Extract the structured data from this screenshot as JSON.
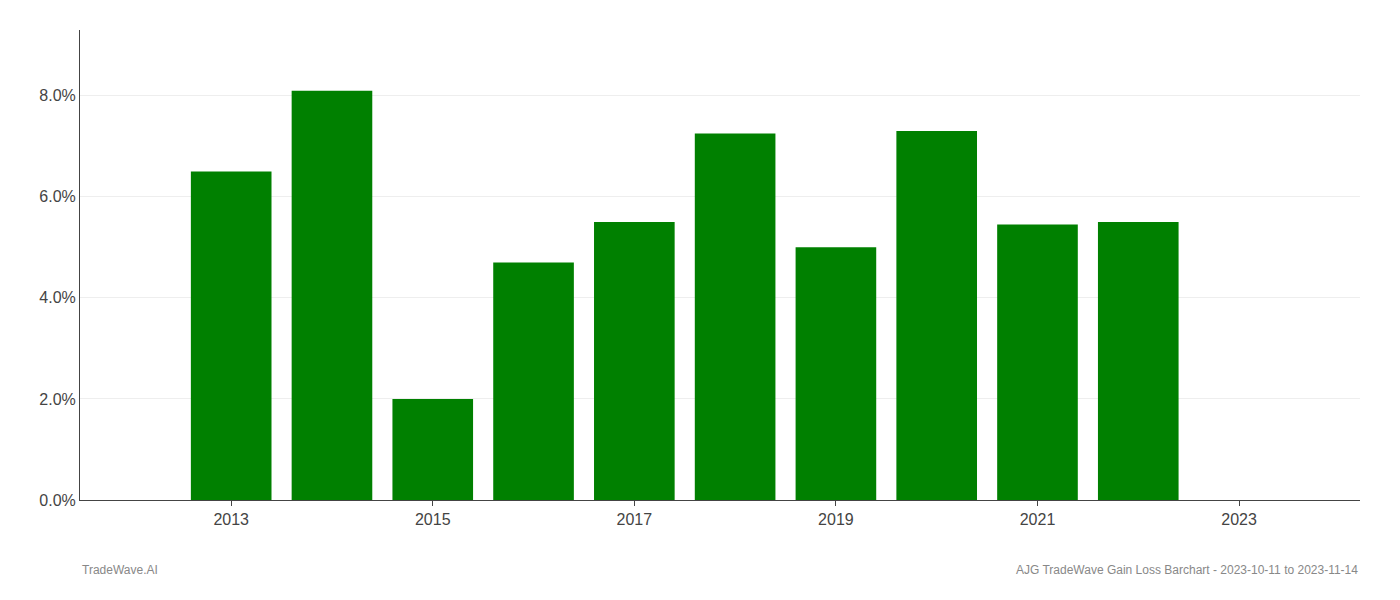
{
  "chart_data": {
    "type": "bar",
    "x": [
      2013,
      2014,
      2015,
      2016,
      2017,
      2018,
      2019,
      2020,
      2021,
      2022
    ],
    "values": [
      0.065,
      0.081,
      0.02,
      0.047,
      0.055,
      0.0725,
      0.05,
      0.073,
      0.0545,
      0.055
    ],
    "color": "#008000",
    "xlim": [
      2011.5,
      2024.2
    ],
    "xticks": [
      2013,
      2015,
      2017,
      2019,
      2021,
      2023
    ],
    "ylim": [
      0,
      0.093
    ],
    "yticks": [
      {
        "value": 0.0,
        "label": "0.0%"
      },
      {
        "value": 0.02,
        "label": "2.0%"
      },
      {
        "value": 0.04,
        "label": "4.0%"
      },
      {
        "value": 0.06,
        "label": "6.0%"
      },
      {
        "value": 0.08,
        "label": "8.0%"
      }
    ],
    "grid": true,
    "annotations": [
      "TradeWave.AI",
      "AJG TradeWave Gain Loss Barchart - 2023-10-11 to 2023-11-14"
    ]
  }
}
